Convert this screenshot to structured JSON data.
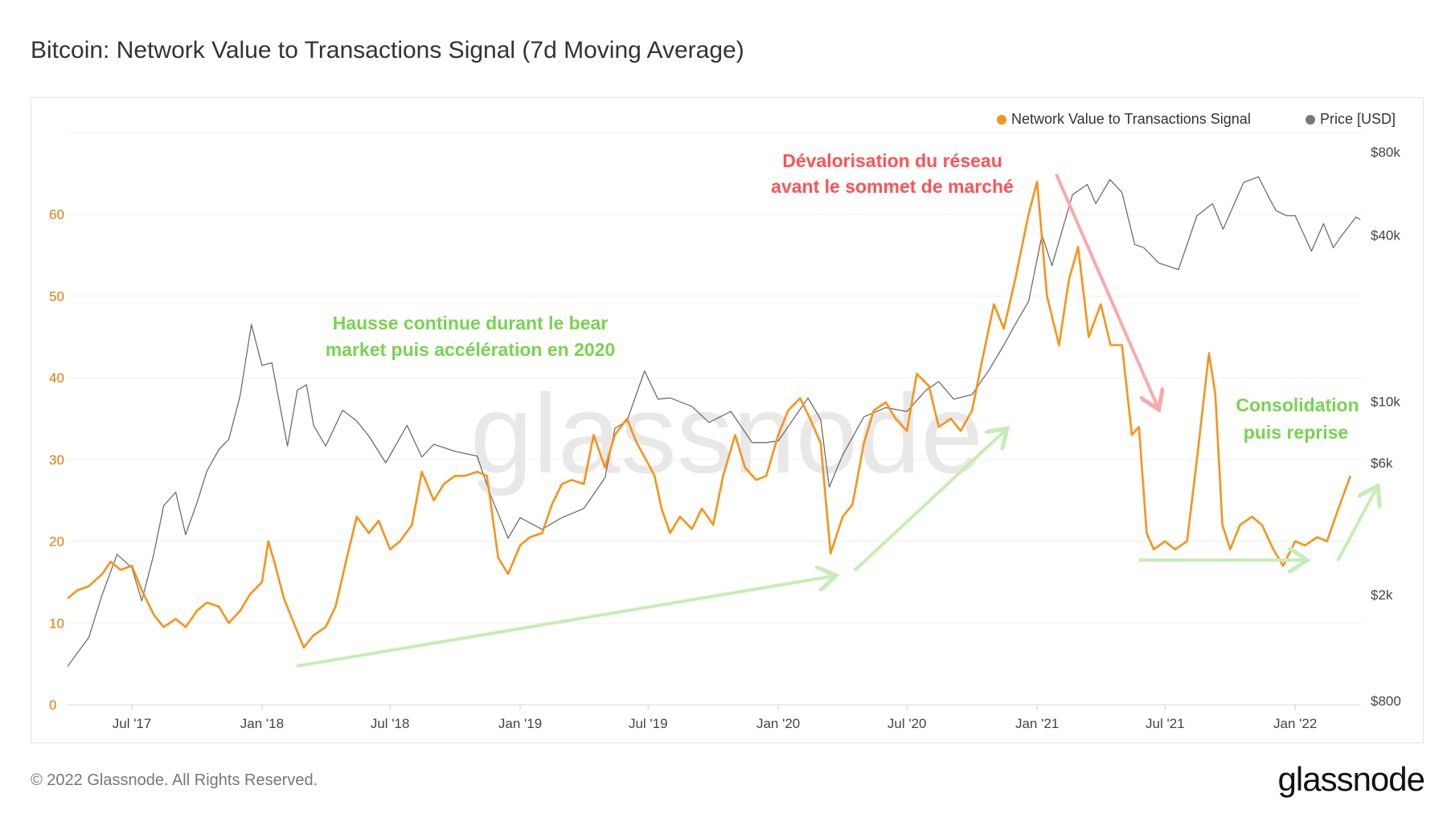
{
  "title": "Bitcoin: Network Value to Transactions Signal (7d Moving Average)",
  "footer": {
    "copyright": "© 2022 Glassnode. All Rights Reserved.",
    "logo": "glassnode"
  },
  "watermark": "glassnode",
  "chart_data": {
    "type": "line",
    "title": "Bitcoin: Network Value to Transactions Signal (7d Moving Average)",
    "legend_position": "top-right",
    "grid": true,
    "x_range": [
      "2017-04-01",
      "2022-04-04"
    ],
    "x_ticks": [
      {
        "date": "2017-07-01",
        "label": "Jul '17"
      },
      {
        "date": "2018-01-01",
        "label": "Jan '18"
      },
      {
        "date": "2018-07-01",
        "label": "Jul '18"
      },
      {
        "date": "2019-01-01",
        "label": "Jan '19"
      },
      {
        "date": "2019-07-01",
        "label": "Jul '19"
      },
      {
        "date": "2020-01-01",
        "label": "Jan '20"
      },
      {
        "date": "2020-07-01",
        "label": "Jul '20"
      },
      {
        "date": "2021-01-01",
        "label": "Jan '21"
      },
      {
        "date": "2021-07-01",
        "label": "Jul '21"
      },
      {
        "date": "2022-01-01",
        "label": "Jan '22"
      }
    ],
    "y_left": {
      "range": [
        0,
        70
      ],
      "ticks": [
        0,
        10,
        20,
        30,
        40,
        50,
        60
      ],
      "color": "#e07b00"
    },
    "y_right": {
      "scale": "log",
      "range": [
        800,
        80000
      ],
      "ticks": [
        {
          "value": 800,
          "label": "$800"
        },
        {
          "value": 2000,
          "label": "$2k"
        },
        {
          "value": 6000,
          "label": "$6k"
        },
        {
          "value": 10000,
          "label": "$10k"
        },
        {
          "value": 40000,
          "label": "$40k"
        },
        {
          "value": 80000,
          "label": "$80k"
        }
      ]
    },
    "series": [
      {
        "name": "Network Value to Transactions Signal",
        "axis": "left",
        "color": "#f7931a",
        "points": [
          [
            "2017-04-01",
            13
          ],
          [
            "2017-04-15",
            14
          ],
          [
            "2017-05-01",
            14.5
          ],
          [
            "2017-05-20",
            16
          ],
          [
            "2017-06-01",
            17.5
          ],
          [
            "2017-06-15",
            16.5
          ],
          [
            "2017-07-01",
            17
          ],
          [
            "2017-07-15",
            14
          ],
          [
            "2017-08-01",
            11
          ],
          [
            "2017-08-15",
            9.5
          ],
          [
            "2017-09-01",
            10.5
          ],
          [
            "2017-09-15",
            9.5
          ],
          [
            "2017-10-01",
            11.5
          ],
          [
            "2017-10-15",
            12.5
          ],
          [
            "2017-11-01",
            12
          ],
          [
            "2017-11-15",
            10
          ],
          [
            "2017-12-01",
            11.5
          ],
          [
            "2017-12-15",
            13.5
          ],
          [
            "2018-01-01",
            15
          ],
          [
            "2018-01-10",
            20
          ],
          [
            "2018-01-20",
            17
          ],
          [
            "2018-02-01",
            13
          ],
          [
            "2018-02-15",
            10
          ],
          [
            "2018-03-01",
            7
          ],
          [
            "2018-03-15",
            8.5
          ],
          [
            "2018-04-01",
            9.5
          ],
          [
            "2018-04-15",
            12
          ],
          [
            "2018-05-01",
            18
          ],
          [
            "2018-05-15",
            23
          ],
          [
            "2018-06-01",
            21
          ],
          [
            "2018-06-15",
            22.5
          ],
          [
            "2018-07-01",
            19
          ],
          [
            "2018-07-15",
            20
          ],
          [
            "2018-08-01",
            22
          ],
          [
            "2018-08-15",
            28.5
          ],
          [
            "2018-09-01",
            25
          ],
          [
            "2018-09-15",
            27
          ],
          [
            "2018-10-01",
            28
          ],
          [
            "2018-10-15",
            28
          ],
          [
            "2018-11-01",
            28.5
          ],
          [
            "2018-11-15",
            28
          ],
          [
            "2018-12-01",
            18
          ],
          [
            "2018-12-15",
            16
          ],
          [
            "2019-01-01",
            19.5
          ],
          [
            "2019-01-15",
            20.5
          ],
          [
            "2019-02-01",
            21
          ],
          [
            "2019-02-15",
            24.5
          ],
          [
            "2019-03-01",
            27
          ],
          [
            "2019-03-15",
            27.5
          ],
          [
            "2019-04-01",
            27
          ],
          [
            "2019-04-15",
            33
          ],
          [
            "2019-05-01",
            29
          ],
          [
            "2019-05-15",
            33
          ],
          [
            "2019-06-01",
            35
          ],
          [
            "2019-06-15",
            32
          ],
          [
            "2019-07-01",
            29.5
          ],
          [
            "2019-07-10",
            28
          ],
          [
            "2019-07-20",
            24
          ],
          [
            "2019-08-01",
            21
          ],
          [
            "2019-08-15",
            23
          ],
          [
            "2019-09-01",
            21.5
          ],
          [
            "2019-09-15",
            24
          ],
          [
            "2019-10-01",
            22
          ],
          [
            "2019-10-15",
            28
          ],
          [
            "2019-11-01",
            33
          ],
          [
            "2019-11-15",
            29
          ],
          [
            "2019-12-01",
            27.5
          ],
          [
            "2019-12-15",
            28
          ],
          [
            "2020-01-01",
            33
          ],
          [
            "2020-01-15",
            36
          ],
          [
            "2020-02-01",
            37.5
          ],
          [
            "2020-02-15",
            35
          ],
          [
            "2020-03-01",
            32
          ],
          [
            "2020-03-15",
            18.5
          ],
          [
            "2020-04-01",
            23
          ],
          [
            "2020-04-15",
            24.5
          ],
          [
            "2020-05-01",
            32
          ],
          [
            "2020-05-15",
            36
          ],
          [
            "2020-06-01",
            37
          ],
          [
            "2020-06-15",
            35
          ],
          [
            "2020-07-01",
            33.5
          ],
          [
            "2020-07-15",
            40.5
          ],
          [
            "2020-08-01",
            39
          ],
          [
            "2020-08-15",
            34
          ],
          [
            "2020-09-01",
            35
          ],
          [
            "2020-09-15",
            33.5
          ],
          [
            "2020-10-01",
            36
          ],
          [
            "2020-10-15",
            42
          ],
          [
            "2020-11-01",
            49
          ],
          [
            "2020-11-15",
            46
          ],
          [
            "2020-12-01",
            52
          ],
          [
            "2020-12-20",
            60
          ],
          [
            "2021-01-01",
            64
          ],
          [
            "2021-01-15",
            50
          ],
          [
            "2021-02-01",
            44
          ],
          [
            "2021-02-15",
            52
          ],
          [
            "2021-02-28",
            56
          ],
          [
            "2021-03-15",
            45
          ],
          [
            "2021-04-01",
            49
          ],
          [
            "2021-04-15",
            44
          ],
          [
            "2021-05-01",
            44
          ],
          [
            "2021-05-15",
            33
          ],
          [
            "2021-05-25",
            34
          ],
          [
            "2021-06-05",
            21
          ],
          [
            "2021-06-15",
            19
          ],
          [
            "2021-07-01",
            20
          ],
          [
            "2021-07-15",
            19
          ],
          [
            "2021-08-01",
            20
          ],
          [
            "2021-08-15",
            30
          ],
          [
            "2021-09-01",
            43
          ],
          [
            "2021-09-10",
            38
          ],
          [
            "2021-09-20",
            22
          ],
          [
            "2021-10-01",
            19
          ],
          [
            "2021-10-15",
            22
          ],
          [
            "2021-11-01",
            23
          ],
          [
            "2021-11-15",
            22
          ],
          [
            "2021-12-01",
            19
          ],
          [
            "2021-12-15",
            17
          ],
          [
            "2022-01-01",
            20
          ],
          [
            "2022-01-15",
            19.5
          ],
          [
            "2022-02-01",
            20.5
          ],
          [
            "2022-02-15",
            20
          ],
          [
            "2022-03-01",
            23.5
          ],
          [
            "2022-03-20",
            28
          ]
        ]
      },
      {
        "name": "Price [USD]",
        "axis": "right",
        "color": "#6e6e6e",
        "points": [
          [
            "2017-04-01",
            1100
          ],
          [
            "2017-05-01",
            1400
          ],
          [
            "2017-05-20",
            2000
          ],
          [
            "2017-06-10",
            2800
          ],
          [
            "2017-07-01",
            2500
          ],
          [
            "2017-07-15",
            1900
          ],
          [
            "2017-08-01",
            2800
          ],
          [
            "2017-08-15",
            4200
          ],
          [
            "2017-09-01",
            4700
          ],
          [
            "2017-09-15",
            3300
          ],
          [
            "2017-10-01",
            4300
          ],
          [
            "2017-10-15",
            5600
          ],
          [
            "2017-11-01",
            6700
          ],
          [
            "2017-11-15",
            7300
          ],
          [
            "2017-12-01",
            10500
          ],
          [
            "2017-12-17",
            19000
          ],
          [
            "2018-01-01",
            13500
          ],
          [
            "2018-01-15",
            13800
          ],
          [
            "2018-02-06",
            6900
          ],
          [
            "2018-02-20",
            11000
          ],
          [
            "2018-03-05",
            11500
          ],
          [
            "2018-03-15",
            8200
          ],
          [
            "2018-04-01",
            6900
          ],
          [
            "2018-04-25",
            9300
          ],
          [
            "2018-05-15",
            8500
          ],
          [
            "2018-06-01",
            7500
          ],
          [
            "2018-06-25",
            6000
          ],
          [
            "2018-07-25",
            8200
          ],
          [
            "2018-08-15",
            6300
          ],
          [
            "2018-09-01",
            7000
          ],
          [
            "2018-10-01",
            6600
          ],
          [
            "2018-11-01",
            6350
          ],
          [
            "2018-11-20",
            4600
          ],
          [
            "2018-12-15",
            3200
          ],
          [
            "2019-01-01",
            3800
          ],
          [
            "2019-02-01",
            3450
          ],
          [
            "2019-03-01",
            3800
          ],
          [
            "2019-04-01",
            4100
          ],
          [
            "2019-05-01",
            5300
          ],
          [
            "2019-05-15",
            8000
          ],
          [
            "2019-06-01",
            8500
          ],
          [
            "2019-06-26",
            12900
          ],
          [
            "2019-07-15",
            10200
          ],
          [
            "2019-08-01",
            10300
          ],
          [
            "2019-09-01",
            9600
          ],
          [
            "2019-09-25",
            8400
          ],
          [
            "2019-10-26",
            9200
          ],
          [
            "2019-11-25",
            7100
          ],
          [
            "2019-12-15",
            7100
          ],
          [
            "2020-01-01",
            7200
          ],
          [
            "2020-02-12",
            10300
          ],
          [
            "2020-03-01",
            8600
          ],
          [
            "2020-03-13",
            4900
          ],
          [
            "2020-04-01",
            6400
          ],
          [
            "2020-05-01",
            8800
          ],
          [
            "2020-06-01",
            9500
          ],
          [
            "2020-07-01",
            9200
          ],
          [
            "2020-07-28",
            11000
          ],
          [
            "2020-08-15",
            11800
          ],
          [
            "2020-09-05",
            10200
          ],
          [
            "2020-10-01",
            10600
          ],
          [
            "2020-10-25",
            13000
          ],
          [
            "2020-11-15",
            16000
          ],
          [
            "2020-12-01",
            19000
          ],
          [
            "2020-12-20",
            23000
          ],
          [
            "2021-01-08",
            40000
          ],
          [
            "2021-01-22",
            31000
          ],
          [
            "2021-02-20",
            56000
          ],
          [
            "2021-03-13",
            61000
          ],
          [
            "2021-03-25",
            52000
          ],
          [
            "2021-04-14",
            63500
          ],
          [
            "2021-05-01",
            57000
          ],
          [
            "2021-05-19",
            37000
          ],
          [
            "2021-06-01",
            36000
          ],
          [
            "2021-06-22",
            31700
          ],
          [
            "2021-07-20",
            30000
          ],
          [
            "2021-08-15",
            47000
          ],
          [
            "2021-09-06",
            52000
          ],
          [
            "2021-09-21",
            42000
          ],
          [
            "2021-10-20",
            62000
          ],
          [
            "2021-11-10",
            65000
          ],
          [
            "2021-11-26",
            54000
          ],
          [
            "2021-12-05",
            49000
          ],
          [
            "2021-12-20",
            47000
          ],
          [
            "2022-01-01",
            47000
          ],
          [
            "2022-01-24",
            35000
          ],
          [
            "2022-02-10",
            44000
          ],
          [
            "2022-02-24",
            36000
          ],
          [
            "2022-03-05",
            39000
          ],
          [
            "2022-03-28",
            46500
          ],
          [
            "2022-04-03",
            45500
          ]
        ]
      }
    ],
    "annotations": [
      {
        "lines": [
          "Hausse continue durant le bear",
          "market puis accélération en 2020"
        ],
        "color": "#77d350"
      },
      {
        "lines": [
          "Dévalorisation du réseau",
          "avant le sommet de marché"
        ],
        "color": "#ff5254"
      },
      {
        "lines": [
          "Consolidation",
          "puis reprise"
        ],
        "color": "#77d350"
      }
    ]
  }
}
